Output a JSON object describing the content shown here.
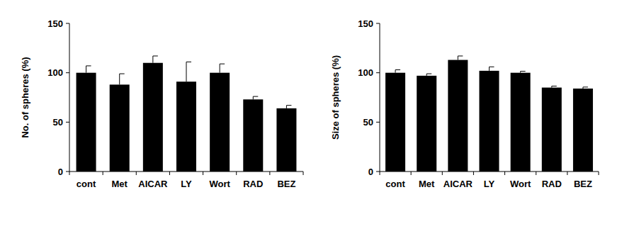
{
  "chart_data": [
    {
      "type": "bar",
      "y_label": "No. of spheres (%)",
      "categories": [
        "cont",
        "Met",
        "AICAR",
        "LY",
        "Wort",
        "RAD",
        "BEZ"
      ],
      "values": [
        100,
        88,
        110,
        91,
        100,
        73,
        64
      ],
      "errors": [
        7,
        11,
        7,
        20,
        9,
        3,
        3
      ],
      "color": "#000000",
      "ylim": [
        0,
        150
      ],
      "yticks": [
        0,
        50,
        100,
        150
      ],
      "grid": false
    },
    {
      "type": "bar",
      "y_label": "Size of spheres (%)",
      "categories": [
        "cont",
        "Met",
        "AICAR",
        "LY",
        "Wort",
        "RAD",
        "BEZ"
      ],
      "values": [
        100,
        97,
        113,
        102,
        100,
        85,
        84
      ],
      "errors": [
        3,
        2,
        4,
        4,
        1.5,
        1.5,
        1.5
      ],
      "color": "#000000",
      "ylim": [
        0,
        150
      ],
      "yticks": [
        0,
        50,
        100,
        150
      ],
      "grid": false
    }
  ]
}
